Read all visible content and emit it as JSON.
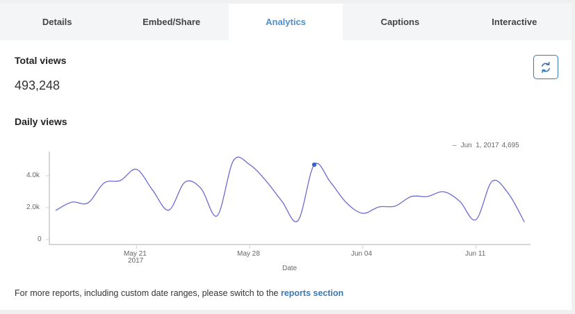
{
  "tabs": [
    {
      "label": "Details",
      "active": false
    },
    {
      "label": "Embed/Share",
      "active": false
    },
    {
      "label": "Analytics",
      "active": true
    },
    {
      "label": "Captions",
      "active": false
    },
    {
      "label": "Interactive",
      "active": false
    }
  ],
  "total_views": {
    "label": "Total views",
    "value": "493,248"
  },
  "refresh_button": {
    "icon": "refresh-icon"
  },
  "daily_views": {
    "label": "Daily views"
  },
  "legend": {
    "date": "Jun  1, 2017",
    "value": "4,695"
  },
  "axis": {
    "y_ticks": [
      "4.0k",
      "2.0k",
      "0"
    ],
    "x_ticks": [
      "May 21",
      "May 28",
      "Jun 04",
      "Jun 11"
    ],
    "x_year": "2017",
    "x_label": "Date"
  },
  "footer": {
    "text": "For more reports, including custom date ranges, please switch to the ",
    "link": "reports section"
  },
  "colors": {
    "accent": "#4a8fd0",
    "line": "#6a6ad0",
    "marker": "#3b62c8"
  },
  "chart_data": {
    "type": "line",
    "title": "Daily views",
    "xlabel": "Date",
    "ylabel": "",
    "ylim": [
      0,
      5500
    ],
    "grid": false,
    "legend_position": "top-right",
    "x": [
      "2017-05-16",
      "2017-05-17",
      "2017-05-18",
      "2017-05-19",
      "2017-05-20",
      "2017-05-21",
      "2017-05-22",
      "2017-05-23",
      "2017-05-24",
      "2017-05-25",
      "2017-05-26",
      "2017-05-27",
      "2017-05-28",
      "2017-05-29",
      "2017-05-30",
      "2017-05-31",
      "2017-06-01",
      "2017-06-02",
      "2017-06-03",
      "2017-06-04",
      "2017-06-05",
      "2017-06-06",
      "2017-06-07",
      "2017-06-08",
      "2017-06-09",
      "2017-06-10",
      "2017-06-11",
      "2017-06-12",
      "2017-06-13",
      "2017-06-14"
    ],
    "series": [
      {
        "name": "Views",
        "values": [
          1830,
          2350,
          2300,
          3550,
          3700,
          4400,
          3100,
          1850,
          3600,
          3200,
          1500,
          4950,
          4700,
          3700,
          2400,
          1200,
          4695,
          3600,
          2300,
          1650,
          2050,
          2100,
          2700,
          2700,
          3000,
          2400,
          1250,
          3650,
          2900,
          1100
        ]
      }
    ],
    "highlight": {
      "x": "2017-06-01",
      "label": "Jun  1, 2017",
      "value": 4695
    },
    "y_ticks": [
      0,
      2000,
      4000
    ],
    "x_ticks": [
      "May 21",
      "May 28",
      "Jun 04",
      "Jun 11"
    ]
  }
}
